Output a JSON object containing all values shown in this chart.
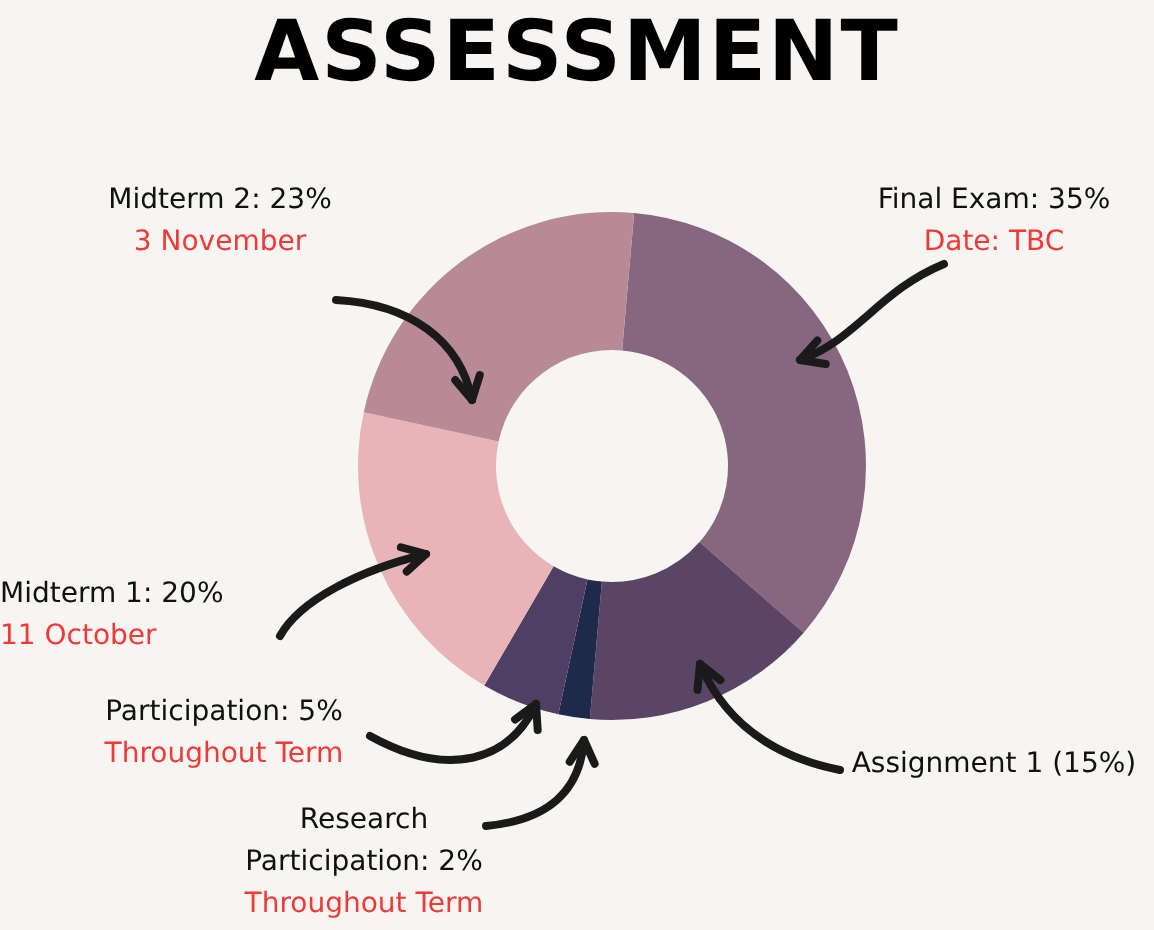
{
  "chart_data": {
    "type": "donut",
    "title": "ASSESSMENT",
    "categories": [
      "Final Exam: 35%",
      "Assignment 1 (15%)",
      "Research Participation: 2%",
      "Participation: 5%",
      "Midterm 1: 20%",
      "Midterm 2: 23%"
    ],
    "values": [
      35,
      15,
      2,
      5,
      20,
      23
    ],
    "colors": [
      "#86677f",
      "#5a4566",
      "#1f2a4a",
      "#4f3f63",
      "#e8b4b8",
      "#b88a98"
    ],
    "annotations": [
      {
        "text": "Date: TBC",
        "x": "Final Exam: 35%"
      },
      {
        "text": "Throughout Term",
        "x": "Research Participation: 2%"
      },
      {
        "text": "Throughout Term",
        "x": "Participation: 5%"
      },
      {
        "text": "11 October",
        "x": "Midterm 1: 20%"
      },
      {
        "text": "3 November",
        "x": "Midterm 2: 23%"
      }
    ]
  }
}
